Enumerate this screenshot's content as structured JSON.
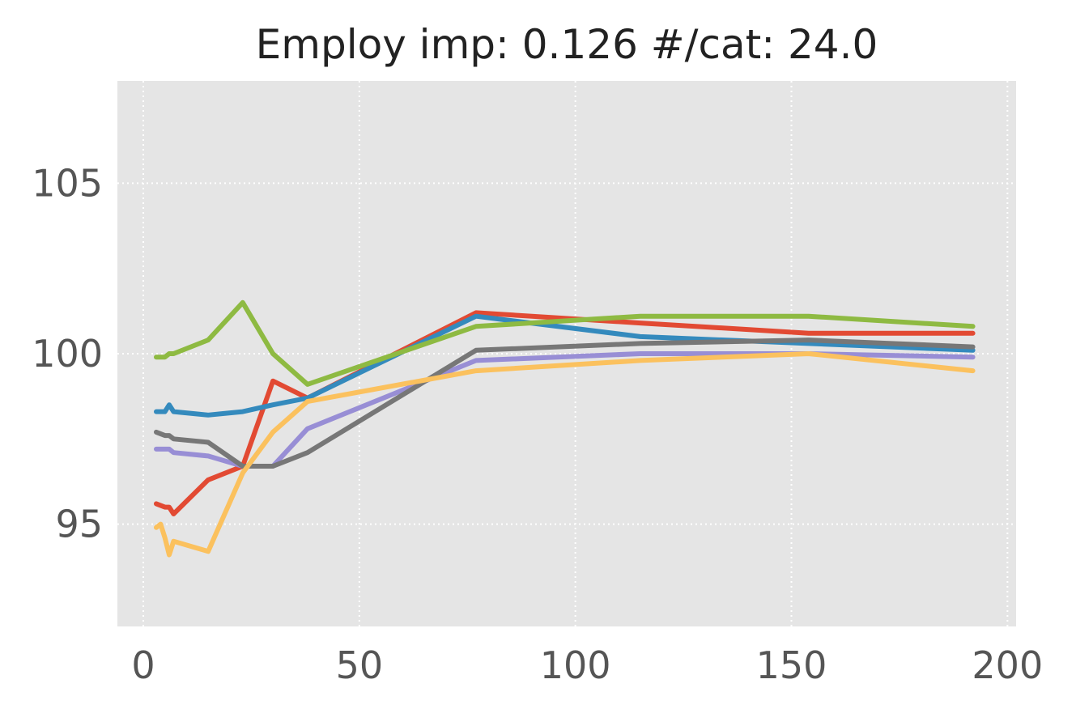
{
  "chart_data": {
    "type": "line",
    "title": "Employ imp: 0.126 #/cat: 24.0",
    "xlabel": "",
    "ylabel": "",
    "xlim": [
      -6,
      202
    ],
    "ylim": [
      92,
      108
    ],
    "x_ticks": [
      0,
      50,
      100,
      150,
      200
    ],
    "y_ticks": [
      95,
      100,
      105
    ],
    "x_tick_labels": [
      "0",
      "50",
      "100",
      "150",
      "200"
    ],
    "y_tick_labels": [
      "95",
      "100",
      "105"
    ],
    "grid": true,
    "legend": "none",
    "background": "#e5e5e5",
    "series": [
      {
        "color": "#e24a33",
        "x": [
          3,
          5,
          6,
          7,
          15,
          23,
          30,
          38,
          77,
          115,
          154,
          192
        ],
        "y": [
          95.6,
          95.5,
          95.5,
          95.3,
          96.3,
          96.7,
          99.2,
          98.7,
          101.2,
          100.9,
          100.6,
          100.6
        ]
      },
      {
        "color": "#348abd",
        "x": [
          3,
          5,
          6,
          7,
          15,
          23,
          30,
          38,
          77,
          115,
          154,
          192
        ],
        "y": [
          98.3,
          98.3,
          98.5,
          98.3,
          98.2,
          98.3,
          98.5,
          98.7,
          101.1,
          100.5,
          100.3,
          100.1
        ]
      },
      {
        "color": "#988ed5",
        "x": [
          3,
          5,
          6,
          7,
          15,
          23,
          30,
          38,
          77,
          115,
          154,
          192
        ],
        "y": [
          97.2,
          97.2,
          97.2,
          97.1,
          97.0,
          96.7,
          96.7,
          97.8,
          99.8,
          100.0,
          100.0,
          99.9
        ]
      },
      {
        "color": "#777777",
        "x": [
          3,
          5,
          6,
          7,
          15,
          23,
          30,
          38,
          77,
          115,
          154,
          192
        ],
        "y": [
          97.7,
          97.6,
          97.6,
          97.5,
          97.4,
          96.7,
          96.7,
          97.1,
          100.1,
          100.3,
          100.4,
          100.2
        ]
      },
      {
        "color": "#fbc15e",
        "x": [
          3,
          4,
          5,
          6,
          7,
          15,
          23,
          30,
          38,
          77,
          115,
          154,
          192
        ],
        "y": [
          94.9,
          95.0,
          94.6,
          94.1,
          94.5,
          94.2,
          96.5,
          97.7,
          98.6,
          99.5,
          99.8,
          100.0,
          99.5
        ]
      },
      {
        "color": "#8eba42",
        "x": [
          3,
          5,
          6,
          7,
          15,
          23,
          30,
          38,
          77,
          115,
          154,
          192
        ],
        "y": [
          99.9,
          99.9,
          100.0,
          100.0,
          100.4,
          101.5,
          100.0,
          99.1,
          100.8,
          101.1,
          101.1,
          100.8
        ]
      }
    ]
  }
}
